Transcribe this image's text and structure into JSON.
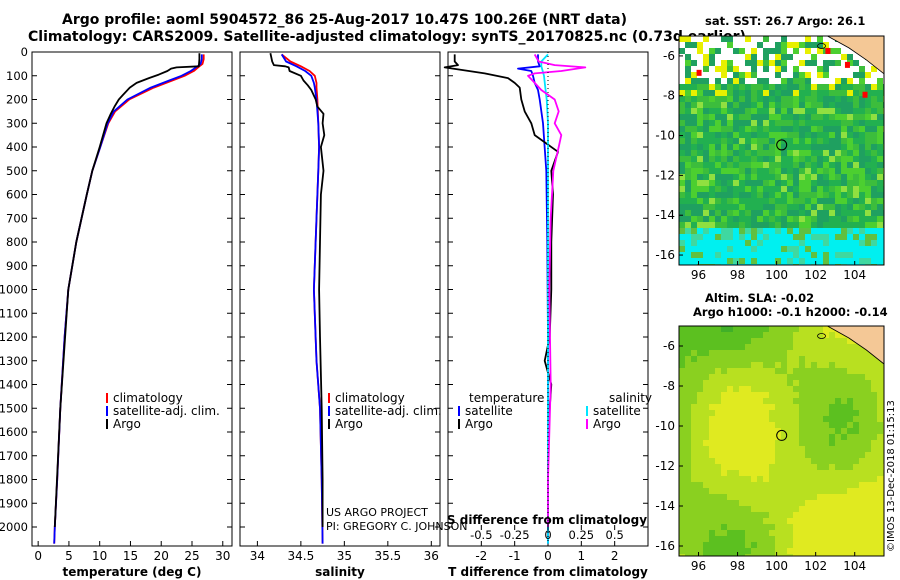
{
  "title_line1": "Argo profile: aoml 5904572_86 25-Aug-2017 10.47S 100.26E (NRT data)",
  "title_line2": "Climatology: CARS2009. Satellite-adjusted climatology: synTS_20170825.nc (0.73d earlier)",
  "credit_line1": "US ARGO PROJECT",
  "credit_line2": "PI: GREGORY C. JOHNSON",
  "imos_stamp": "©IMOS 13-Dec-2018 01:15:13",
  "map_sst_title": "sat. SST: 26.7 Argo: 26.1",
  "map_sla_title1": "Altim. SLA: -0.02",
  "map_sla_title2": "Argo h1000: -0.1 h2000: -0.14",
  "colors": {
    "climatology": "#ff0000",
    "satellite": "#0000ff",
    "argo": "#000000",
    "sat_salinity": "#00e5ff",
    "argo_salinity": "#ff00ff"
  },
  "chart_data": [
    {
      "type": "line",
      "name": "temperature",
      "xlabel": "temperature (deg C)",
      "ylabel": "",
      "xlim": [
        -1,
        31.5
      ],
      "ylim": [
        2080,
        0
      ],
      "xticks": [
        0,
        5,
        10,
        15,
        20,
        25,
        30
      ],
      "yticks": [
        0,
        100,
        200,
        300,
        400,
        500,
        600,
        700,
        800,
        900,
        1000,
        1100,
        1200,
        1300,
        1400,
        1500,
        1600,
        1700,
        1800,
        1900,
        2000
      ],
      "legend": [
        "climatology",
        "satellite-adj. clim.",
        "Argo"
      ],
      "series": [
        {
          "name": "climatology",
          "color": "#ff0000",
          "depth": [
            10,
            30,
            50,
            60,
            80,
            100,
            120,
            150,
            200,
            250,
            300,
            400,
            500,
            600,
            800,
            1000,
            1200,
            1500,
            1800,
            2000,
            2070
          ],
          "values": [
            26.9,
            26.9,
            26.7,
            26.2,
            25.3,
            23.8,
            21.8,
            18.8,
            14.8,
            12.5,
            11.4,
            10.1,
            8.8,
            7.9,
            6.2,
            4.9,
            4.3,
            3.6,
            3.1,
            2.7,
            2.6
          ]
        },
        {
          "name": "satellite-adj. clim.",
          "color": "#0000ff",
          "depth": [
            10,
            30,
            50,
            60,
            80,
            100,
            120,
            150,
            200,
            250,
            300,
            400,
            500,
            600,
            800,
            1000,
            1200,
            1500,
            1800,
            2000,
            2070
          ],
          "values": [
            26.6,
            26.6,
            26.4,
            25.9,
            24.8,
            23.3,
            21.3,
            18.3,
            14.5,
            12.3,
            11.3,
            10.1,
            8.8,
            7.9,
            6.2,
            4.9,
            4.3,
            3.6,
            3.1,
            2.7,
            2.6
          ]
        },
        {
          "name": "Argo",
          "color": "#000000",
          "depth": [
            5,
            30,
            60,
            65,
            70,
            80,
            95,
            110,
            130,
            150,
            180,
            200,
            230,
            260,
            300,
            400,
            500,
            600,
            800,
            1000,
            1500,
            2000
          ],
          "values": [
            26.2,
            26.2,
            26.1,
            22.5,
            21.6,
            21.0,
            19.6,
            18.0,
            16.0,
            14.9,
            13.8,
            13.1,
            12.4,
            11.8,
            11.1,
            10.0,
            8.8,
            7.9,
            6.2,
            4.9,
            3.6,
            2.7
          ]
        }
      ]
    },
    {
      "type": "line",
      "name": "salinity",
      "xlabel": "salinity",
      "ylabel": "",
      "xlim": [
        33.8,
        36.1
      ],
      "ylim": [
        2080,
        0
      ],
      "xticks": [
        34,
        34.5,
        35,
        35.5,
        36
      ],
      "legend": [
        "climatology",
        "satellite-adj. clim.",
        "Argo"
      ],
      "series": [
        {
          "name": "climatology",
          "color": "#ff0000",
          "depth": [
            10,
            40,
            60,
            80,
            100,
            130,
            150,
            200,
            300,
            400,
            500,
            700,
            1000,
            1300,
            1500,
            1800,
            2070
          ],
          "values": [
            34.28,
            34.38,
            34.5,
            34.6,
            34.66,
            34.68,
            34.68,
            34.69,
            34.7,
            34.71,
            34.7,
            34.68,
            34.65,
            34.68,
            34.72,
            34.74,
            34.75
          ]
        },
        {
          "name": "satellite-adj. clim.",
          "color": "#0000ff",
          "depth": [
            10,
            40,
            60,
            80,
            100,
            130,
            150,
            200,
            300,
            400,
            500,
            700,
            1000,
            1300,
            1500,
            1800,
            2070
          ],
          "values": [
            34.28,
            34.33,
            34.45,
            34.55,
            34.62,
            34.65,
            34.66,
            34.68,
            34.7,
            34.71,
            34.7,
            34.68,
            34.65,
            34.68,
            34.72,
            34.74,
            34.75
          ]
        },
        {
          "name": "Argo",
          "color": "#000000",
          "depth": [
            5,
            40,
            55,
            60,
            65,
            80,
            100,
            120,
            140,
            160,
            200,
            230,
            260,
            300,
            350,
            400,
            500,
            600,
            800,
            1000,
            1200,
            1500,
            1800,
            2000
          ],
          "values": [
            34.15,
            34.17,
            34.19,
            34.32,
            34.36,
            34.37,
            34.5,
            34.53,
            34.58,
            34.62,
            34.67,
            34.69,
            34.76,
            34.75,
            34.77,
            34.73,
            34.76,
            34.73,
            34.72,
            34.71,
            34.72,
            34.74,
            34.75,
            34.75
          ]
        }
      ]
    },
    {
      "type": "line",
      "name": "difference",
      "xlabel": "T difference from climatology",
      "top_axis_label": "S difference from climatology",
      "xlim": [
        -3,
        3
      ],
      "ylim": [
        2080,
        0
      ],
      "xticks": [
        -2,
        -1,
        0,
        1,
        2
      ],
      "s_xlim": [
        -0.75,
        0.75
      ],
      "s_xticks": [
        -0.5,
        -0.25,
        0,
        0.25,
        0.5
      ],
      "s_ticklabels": [
        "-0.5",
        "-0.25",
        "0",
        "0.25",
        "0.5"
      ],
      "legend_t_title": "temperature",
      "legend_s_title": "salinity",
      "legend_t": [
        "satellite",
        "Argo"
      ],
      "legend_s": [
        "satellite",
        "Argo"
      ],
      "series": [
        {
          "name": "T satellite",
          "axis": "T",
          "color": "#0000ff",
          "depth": [
            10,
            40,
            60,
            70,
            80,
            100,
            130,
            160,
            200,
            300,
            500,
            800,
            1200,
            1600,
            2070
          ],
          "values": [
            -0.3,
            -0.3,
            -0.25,
            -0.9,
            -0.5,
            -0.45,
            -0.4,
            -0.3,
            -0.25,
            -0.15,
            -0.05,
            -0.02,
            0,
            0,
            0
          ]
        },
        {
          "name": "T Argo",
          "axis": "T",
          "color": "#000000",
          "depth": [
            10,
            40,
            55,
            65,
            90,
            110,
            130,
            150,
            200,
            250,
            300,
            350,
            420,
            500,
            600,
            800,
            1000,
            1200,
            1300,
            1400,
            1500,
            1700,
            2000
          ],
          "values": [
            -2.8,
            -2.8,
            -2.7,
            -3.1,
            -1.9,
            -1.2,
            -1.0,
            -0.85,
            -0.8,
            -0.7,
            -0.5,
            -0.4,
            0.3,
            0.1,
            0.15,
            0.1,
            0.1,
            0.05,
            -0.1,
            0.1,
            0.05,
            0.0,
            0.0
          ]
        },
        {
          "name": "S satellite",
          "axis": "S",
          "color": "#00e5ff",
          "depth": [
            10,
            40,
            60,
            80,
            100,
            150,
            200,
            300,
            500,
            800,
            1200,
            1600,
            2070
          ],
          "values": [
            0.0,
            -0.05,
            -0.05,
            -0.04,
            -0.03,
            -0.02,
            -0.01,
            0,
            0,
            0,
            0,
            0,
            0
          ]
        },
        {
          "name": "S Argo",
          "axis": "S",
          "color": "#ff00ff",
          "depth": [
            10,
            40,
            55,
            65,
            80,
            90,
            100,
            130,
            160,
            200,
            250,
            300,
            350,
            400,
            500,
            700,
            1000,
            1400,
            1800,
            2000
          ],
          "values": [
            -0.1,
            -0.07,
            0.05,
            0.28,
            0.1,
            -0.1,
            -0.15,
            -0.1,
            -0.05,
            0.05,
            0.08,
            0.05,
            0.1,
            0.08,
            0.04,
            0.02,
            0.01,
            0.02,
            0,
            0
          ]
        }
      ]
    },
    {
      "type": "heatmap",
      "name": "sst_map",
      "xlim": [
        95,
        105.5
      ],
      "ylim": [
        -16.5,
        -5
      ],
      "xticks": [
        96,
        98,
        100,
        102,
        104
      ],
      "yticks": [
        -6,
        -8,
        -10,
        -12,
        -14,
        -16
      ],
      "profile_lon": 100.26,
      "profile_lat": -10.47
    },
    {
      "type": "heatmap",
      "name": "sla_map",
      "xlim": [
        95,
        105.5
      ],
      "ylim": [
        -16.5,
        -5
      ],
      "xticks": [
        96,
        98,
        100,
        102,
        104
      ],
      "yticks": [
        -6,
        -8,
        -10,
        -12,
        -14,
        -16
      ],
      "profile_lon": 100.26,
      "profile_lat": -10.47
    }
  ]
}
